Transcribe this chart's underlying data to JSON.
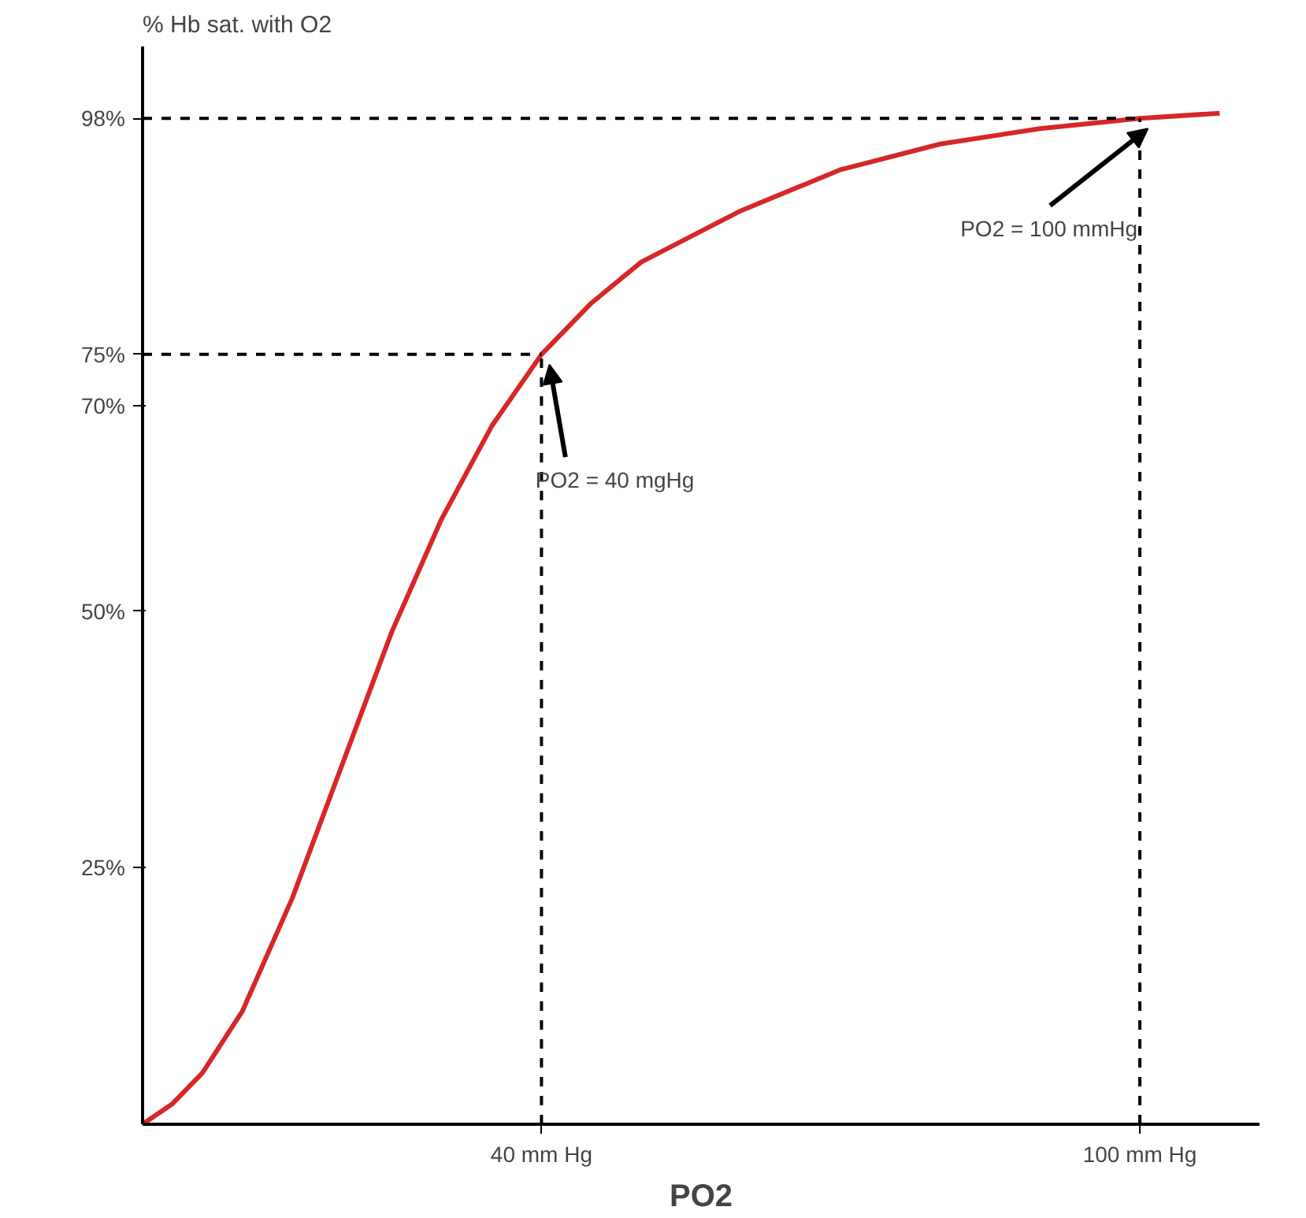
{
  "chart_data": {
    "type": "line",
    "xlabel": "PO2",
    "ylabel": "% Hb sat. with O2",
    "x": [
      0,
      3,
      6,
      10,
      15,
      20,
      25,
      30,
      35,
      40,
      45,
      50,
      60,
      70,
      80,
      90,
      100,
      108
    ],
    "series": [
      {
        "color": "#d62728",
        "values": [
          0,
          2,
          5,
          11,
          22,
          35,
          48,
          59,
          68,
          75,
          80,
          84,
          89,
          93,
          95.5,
          97,
          98,
          98.5
        ]
      }
    ],
    "xlim": [
      0,
      112
    ],
    "ylim": [
      0,
      105
    ],
    "xticks": [
      {
        "value": 40,
        "label": "40 mm Hg"
      },
      {
        "value": 100,
        "label": "100 mm Hg"
      }
    ],
    "yticks": [
      {
        "value": 25,
        "label": "25%"
      },
      {
        "value": 50,
        "label": "50%"
      },
      {
        "value": 70,
        "label": "70%"
      },
      {
        "value": 75,
        "label": "75%"
      },
      {
        "value": 98,
        "label": "98%"
      }
    ],
    "ref_lines": [
      {
        "axis": "y",
        "value": 75,
        "line_style": "dashed",
        "color": "#000000"
      },
      {
        "axis": "x",
        "value": 40,
        "line_style": "dashed",
        "color": "#000000"
      },
      {
        "axis": "y",
        "value": 98,
        "line_style": "dashed",
        "color": "#000000"
      },
      {
        "axis": "x",
        "value": 100,
        "line_style": "dashed",
        "color": "#000000"
      }
    ],
    "annotations": [
      {
        "text": "PO2 = 40 mgHg",
        "x": 40,
        "y": 75
      },
      {
        "text": "PO2 = 100 mmHg",
        "x": 100,
        "y": 98
      }
    ],
    "grid": false,
    "marker": "none",
    "line_style": "solid"
  }
}
